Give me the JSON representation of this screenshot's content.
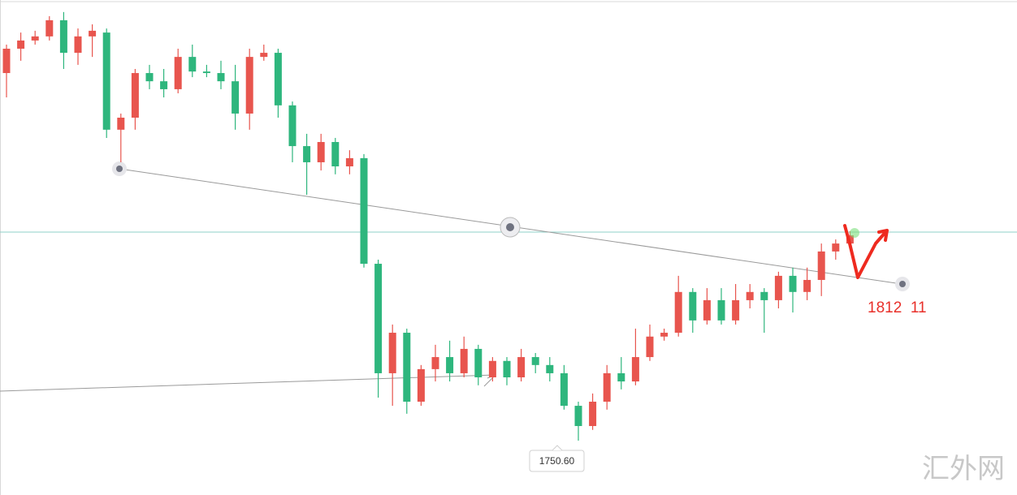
{
  "chart_data": {
    "type": "candlestick",
    "up_color": "#e8554e",
    "down_color": "#2eb67d",
    "ylim": [
      1729.4,
      1922.5
    ],
    "open": [
      1894.0,
      1903.5,
      1906.7,
      1908.3,
      1914.6,
      1901.9,
      1908.3,
      1909.8,
      1871.9,
      1876.6,
      1894.0,
      1890.8,
      1887.7,
      1900.3,
      1894.6,
      1894.0,
      1890.8,
      1878.2,
      1900.3,
      1901.9,
      1881.4,
      1865.5,
      1859.2,
      1867.1,
      1857.6,
      1860.8,
      1819.6,
      1776.9,
      1792.7,
      1765.8,
      1778.5,
      1783.2,
      1776.9,
      1786.4,
      1775.3,
      1781.7,
      1775.3,
      1783.2,
      1780.1,
      1776.9,
      1764.2,
      1756.3,
      1765.8,
      1776.9,
      1773.7,
      1783.2,
      1791.2,
      1792.7,
      1808.6,
      1797.5,
      1805.4,
      1797.5,
      1805.4,
      1808.6,
      1805.4,
      1814.9,
      1808.6,
      1813.3,
      1824.4,
      1827.5
    ],
    "high": [
      1905.1,
      1909.8,
      1910.5,
      1916.2,
      1917.8,
      1911.4,
      1913.0,
      1911.4,
      1878.2,
      1895.6,
      1897.2,
      1895.6,
      1903.5,
      1905.1,
      1897.2,
      1898.8,
      1897.2,
      1903.5,
      1905.1,
      1903.5,
      1882.9,
      1870.3,
      1870.3,
      1868.7,
      1863.9,
      1862.4,
      1821.2,
      1795.9,
      1794.3,
      1780.1,
      1788.0,
      1789.6,
      1791.2,
      1788.0,
      1783.2,
      1783.2,
      1786.4,
      1784.8,
      1783.2,
      1780.1,
      1765.8,
      1769.0,
      1780.1,
      1783.2,
      1794.3,
      1795.9,
      1794.3,
      1814.9,
      1810.1,
      1810.1,
      1810.1,
      1811.7,
      1811.7,
      1810.1,
      1816.5,
      1818.1,
      1818.1,
      1827.5,
      1829.1,
      1832.3
    ],
    "low": [
      1884.5,
      1898.8,
      1905.1,
      1906.7,
      1895.6,
      1897.2,
      1900.3,
      1868.7,
      1859.2,
      1871.9,
      1887.7,
      1884.5,
      1886.1,
      1892.4,
      1892.4,
      1887.7,
      1871.9,
      1871.9,
      1898.8,
      1876.6,
      1859.2,
      1846.5,
      1856.0,
      1854.5,
      1854.5,
      1818.1,
      1767.4,
      1764.2,
      1761.1,
      1764.2,
      1773.7,
      1773.7,
      1775.3,
      1772.2,
      1773.7,
      1772.2,
      1773.7,
      1776.9,
      1773.7,
      1762.7,
      1750.6,
      1754.8,
      1762.7,
      1770.6,
      1772.2,
      1781.7,
      1789.6,
      1791.2,
      1792.7,
      1795.9,
      1795.9,
      1795.9,
      1802.2,
      1792.7,
      1802.2,
      1800.6,
      1805.4,
      1807.0,
      1821.2,
      1827.5
    ],
    "close": [
      1903.5,
      1906.7,
      1908.3,
      1914.6,
      1901.9,
      1908.3,
      1910.5,
      1871.9,
      1876.6,
      1894.0,
      1890.8,
      1887.7,
      1900.3,
      1894.6,
      1894.0,
      1890.8,
      1878.2,
      1900.3,
      1901.9,
      1881.4,
      1865.5,
      1859.2,
      1867.1,
      1857.6,
      1860.8,
      1819.6,
      1776.9,
      1792.7,
      1765.8,
      1778.5,
      1783.2,
      1776.9,
      1786.4,
      1775.3,
      1781.7,
      1775.3,
      1783.2,
      1780.1,
      1776.9,
      1764.2,
      1756.3,
      1765.8,
      1776.9,
      1773.7,
      1783.2,
      1791.2,
      1792.7,
      1808.6,
      1797.5,
      1805.4,
      1797.5,
      1805.4,
      1808.6,
      1805.4,
      1814.9,
      1808.6,
      1813.3,
      1824.4,
      1827.5,
      1830.7
    ],
    "annotation": "1812  11",
    "low_label": "1750.60",
    "watermark": "汇外网"
  }
}
